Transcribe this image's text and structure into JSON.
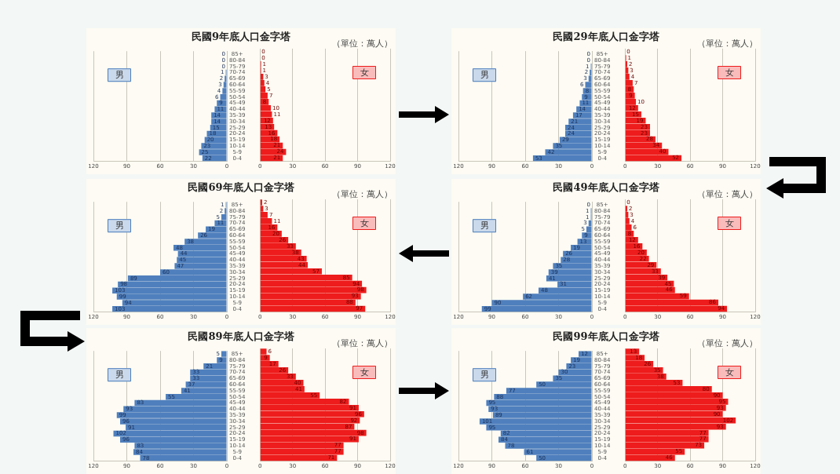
{
  "chart_data": [
    {
      "type": "bar",
      "orientation": "horizontal",
      "title": "民國9年底人口金字塔",
      "categories": [
        "85+",
        "80-84",
        "75-79",
        "70-74",
        "65-69",
        "60-64",
        "55-59",
        "50-54",
        "45-49",
        "40-44",
        "35-39",
        "30-34",
        "25-29",
        "20-24",
        "15-19",
        "10-14",
        "5-9",
        "0-4"
      ],
      "series": [
        {
          "name": "男",
          "color": "#4f7fbd",
          "values": [
            0,
            0,
            0,
            1,
            2,
            3,
            4,
            6,
            9,
            11,
            14,
            14,
            15,
            18,
            20,
            23,
            25,
            22
          ]
        }
      ],
      "xlim": [
        120,
        0
      ],
      "xticks": [
        120,
        90,
        60,
        30,
        0
      ],
      "grid": "x",
      "legend": "top left",
      "data_labels": true
    },
    {
      "type": "bar",
      "orientation": "horizontal",
      "annotations": [
        "（單位：萬人）"
      ],
      "series": [
        {
          "name": "女",
          "color": "#ee1c1c",
          "values": [
            0,
            0,
            1,
            1,
            3,
            4,
            5,
            7,
            8,
            10,
            11,
            12,
            13,
            16,
            18,
            21,
            24,
            21
          ]
        }
      ],
      "xlim": [
        0,
        120
      ],
      "xticks": [
        0,
        30,
        60,
        90,
        120
      ],
      "grid": "x",
      "legend": "top right",
      "data_labels": true
    },
    {
      "type": "bar",
      "orientation": "horizontal",
      "title": "民國29年底人口金字塔",
      "categories": [
        "85+",
        "80-84",
        "75-79",
        "70-74",
        "65-69",
        "60-64",
        "55-59",
        "50-54",
        "45-49",
        "40-44",
        "35-39",
        "30-34",
        "25-29",
        "20-24",
        "15-19",
        "10-14",
        "5-9",
        "0-4"
      ],
      "series": [
        {
          "name": "男",
          "color": "#4f7fbd",
          "values": [
            0,
            0,
            1,
            2,
            3,
            6,
            8,
            9,
            11,
            14,
            17,
            21,
            24,
            24,
            29,
            35,
            42,
            53
          ]
        }
      ],
      "xlim": [
        120,
        0
      ],
      "xticks": [
        120,
        90,
        60,
        30,
        0
      ],
      "grid": "x",
      "legend": "top left",
      "data_labels": true
    },
    {
      "type": "bar",
      "orientation": "horizontal",
      "annotations": [
        "（單位：萬人）"
      ],
      "series": [
        {
          "name": "女",
          "color": "#ee1c1c",
          "values": [
            0,
            1,
            2,
            3,
            4,
            7,
            8,
            9,
            10,
            12,
            15,
            19,
            23,
            23,
            28,
            34,
            40,
            52
          ]
        }
      ],
      "xlim": [
        0,
        120
      ],
      "xticks": [
        0,
        30,
        60,
        90,
        120
      ],
      "grid": "x",
      "legend": "top right",
      "data_labels": true
    },
    {
      "type": "bar",
      "orientation": "horizontal",
      "title": "民國69年底人口金字塔",
      "categories": [
        "85+",
        "80-84",
        "75-79",
        "70-74",
        "65-69",
        "60-64",
        "55-59",
        "50-54",
        "45-49",
        "40-44",
        "35-39",
        "30-34",
        "25-29",
        "20-24",
        "15-19",
        "10-14",
        "5-9",
        "0-4"
      ],
      "series": [
        {
          "name": "男",
          "color": "#4f7fbd",
          "values": [
            1,
            2,
            5,
            11,
            19,
            26,
            38,
            48,
            44,
            45,
            47,
            60,
            89,
            98,
            103,
            99,
            94,
            103
          ]
        }
      ],
      "xlim": [
        120,
        0
      ],
      "xticks": [
        120,
        90,
        60,
        30,
        0
      ],
      "grid": "x",
      "legend": "top left",
      "data_labels": true
    },
    {
      "type": "bar",
      "orientation": "horizontal",
      "annotations": [
        "（單位：萬人）"
      ],
      "series": [
        {
          "name": "女",
          "color": "#ee1c1c",
          "values": [
            2,
            3,
            7,
            11,
            16,
            20,
            26,
            33,
            38,
            43,
            44,
            57,
            85,
            94,
            98,
            93,
            88,
            97
          ]
        }
      ],
      "xlim": [
        0,
        120
      ],
      "xticks": [
        0,
        30,
        60,
        90,
        120
      ],
      "grid": "x",
      "legend": "top right",
      "data_labels": true
    },
    {
      "type": "bar",
      "orientation": "horizontal",
      "title": "民國49年底人口金字塔",
      "categories": [
        "85+",
        "80-84",
        "75-79",
        "70-74",
        "65-69",
        "60-64",
        "55-59",
        "50-54",
        "45-49",
        "40-44",
        "35-39",
        "30-34",
        "25-29",
        "20-24",
        "15-19",
        "10-14",
        "5-9",
        "0-4"
      ],
      "series": [
        {
          "name": "男",
          "color": "#4f7fbd",
          "values": [
            0,
            1,
            1,
            3,
            5,
            9,
            13,
            19,
            26,
            28,
            35,
            39,
            41,
            31,
            48,
            62,
            90,
            99
          ]
        }
      ],
      "xlim": [
        120,
        0
      ],
      "xticks": [
        120,
        90,
        60,
        30,
        0
      ],
      "grid": "x",
      "legend": "top left",
      "data_labels": true
    },
    {
      "type": "bar",
      "orientation": "horizontal",
      "annotations": [
        "（單位：萬人）"
      ],
      "series": [
        {
          "name": "女",
          "color": "#ee1c1c",
          "values": [
            0,
            2,
            3,
            4,
            6,
            8,
            12,
            16,
            20,
            22,
            29,
            33,
            39,
            45,
            46,
            59,
            86,
            94
          ]
        }
      ],
      "xlim": [
        0,
        120
      ],
      "xticks": [
        0,
        30,
        60,
        90,
        120
      ],
      "grid": "x",
      "legend": "top right",
      "data_labels": true
    },
    {
      "type": "bar",
      "orientation": "horizontal",
      "title": "民國89年底人口金字塔",
      "categories": [
        "85+",
        "80-84",
        "75-79",
        "70-74",
        "65-69",
        "60-64",
        "55-59",
        "50-54",
        "45-49",
        "40-44",
        "35-39",
        "30-34",
        "25-29",
        "20-24",
        "15-19",
        "10-14",
        "5-9",
        "0-4"
      ],
      "series": [
        {
          "name": "男",
          "color": "#4f7fbd",
          "values": [
            5,
            9,
            21,
            33,
            33,
            37,
            41,
            55,
            83,
            93,
            99,
            96,
            91,
            102,
            96,
            83,
            84,
            78
          ]
        }
      ],
      "xlim": [
        120,
        0
      ],
      "xticks": [
        120,
        90,
        60,
        30,
        0
      ],
      "grid": "x",
      "legend": "top left",
      "data_labels": true
    },
    {
      "type": "bar",
      "orientation": "horizontal",
      "annotations": [
        "（單位：萬人）"
      ],
      "series": [
        {
          "name": "女",
          "color": "#ee1c1c",
          "values": [
            6,
            9,
            17,
            26,
            33,
            40,
            41,
            55,
            82,
            91,
            96,
            92,
            87,
            98,
            91,
            77,
            77,
            71
          ]
        }
      ],
      "xlim": [
        0,
        120
      ],
      "xticks": [
        0,
        30,
        60,
        90,
        120
      ],
      "grid": "x",
      "legend": "top right",
      "data_labels": true
    },
    {
      "type": "bar",
      "orientation": "horizontal",
      "title": "民國99年底人口金字塔",
      "categories": [
        "85+",
        "80-84",
        "75-79",
        "70-74",
        "65-69",
        "60-64",
        "55-59",
        "50-54",
        "45-49",
        "40-44",
        "35-39",
        "30-34",
        "25-29",
        "20-24",
        "15-19",
        "10-14",
        "5-9",
        "0-4"
      ],
      "series": [
        {
          "name": "男",
          "color": "#4f7fbd",
          "values": [
            12,
            19,
            23,
            30,
            35,
            50,
            77,
            88,
            95,
            93,
            89,
            101,
            95,
            82,
            84,
            78,
            61,
            50
          ]
        }
      ],
      "xlim": [
        120,
        0
      ],
      "xticks": [
        120,
        90,
        60,
        30,
        0
      ],
      "grid": "x",
      "legend": "top left",
      "data_labels": true
    },
    {
      "type": "bar",
      "orientation": "horizontal",
      "annotations": [
        "（單位：萬人）"
      ],
      "series": [
        {
          "name": "女",
          "color": "#ee1c1c",
          "values": [
            13,
            18,
            26,
            35,
            38,
            53,
            80,
            90,
            95,
            93,
            90,
            102,
            93,
            77,
            77,
            73,
            55,
            46
          ]
        }
      ],
      "xlim": [
        0,
        120
      ],
      "xticks": [
        0,
        30,
        60,
        90,
        120
      ],
      "grid": "x",
      "legend": "top right",
      "data_labels": true
    }
  ]
}
